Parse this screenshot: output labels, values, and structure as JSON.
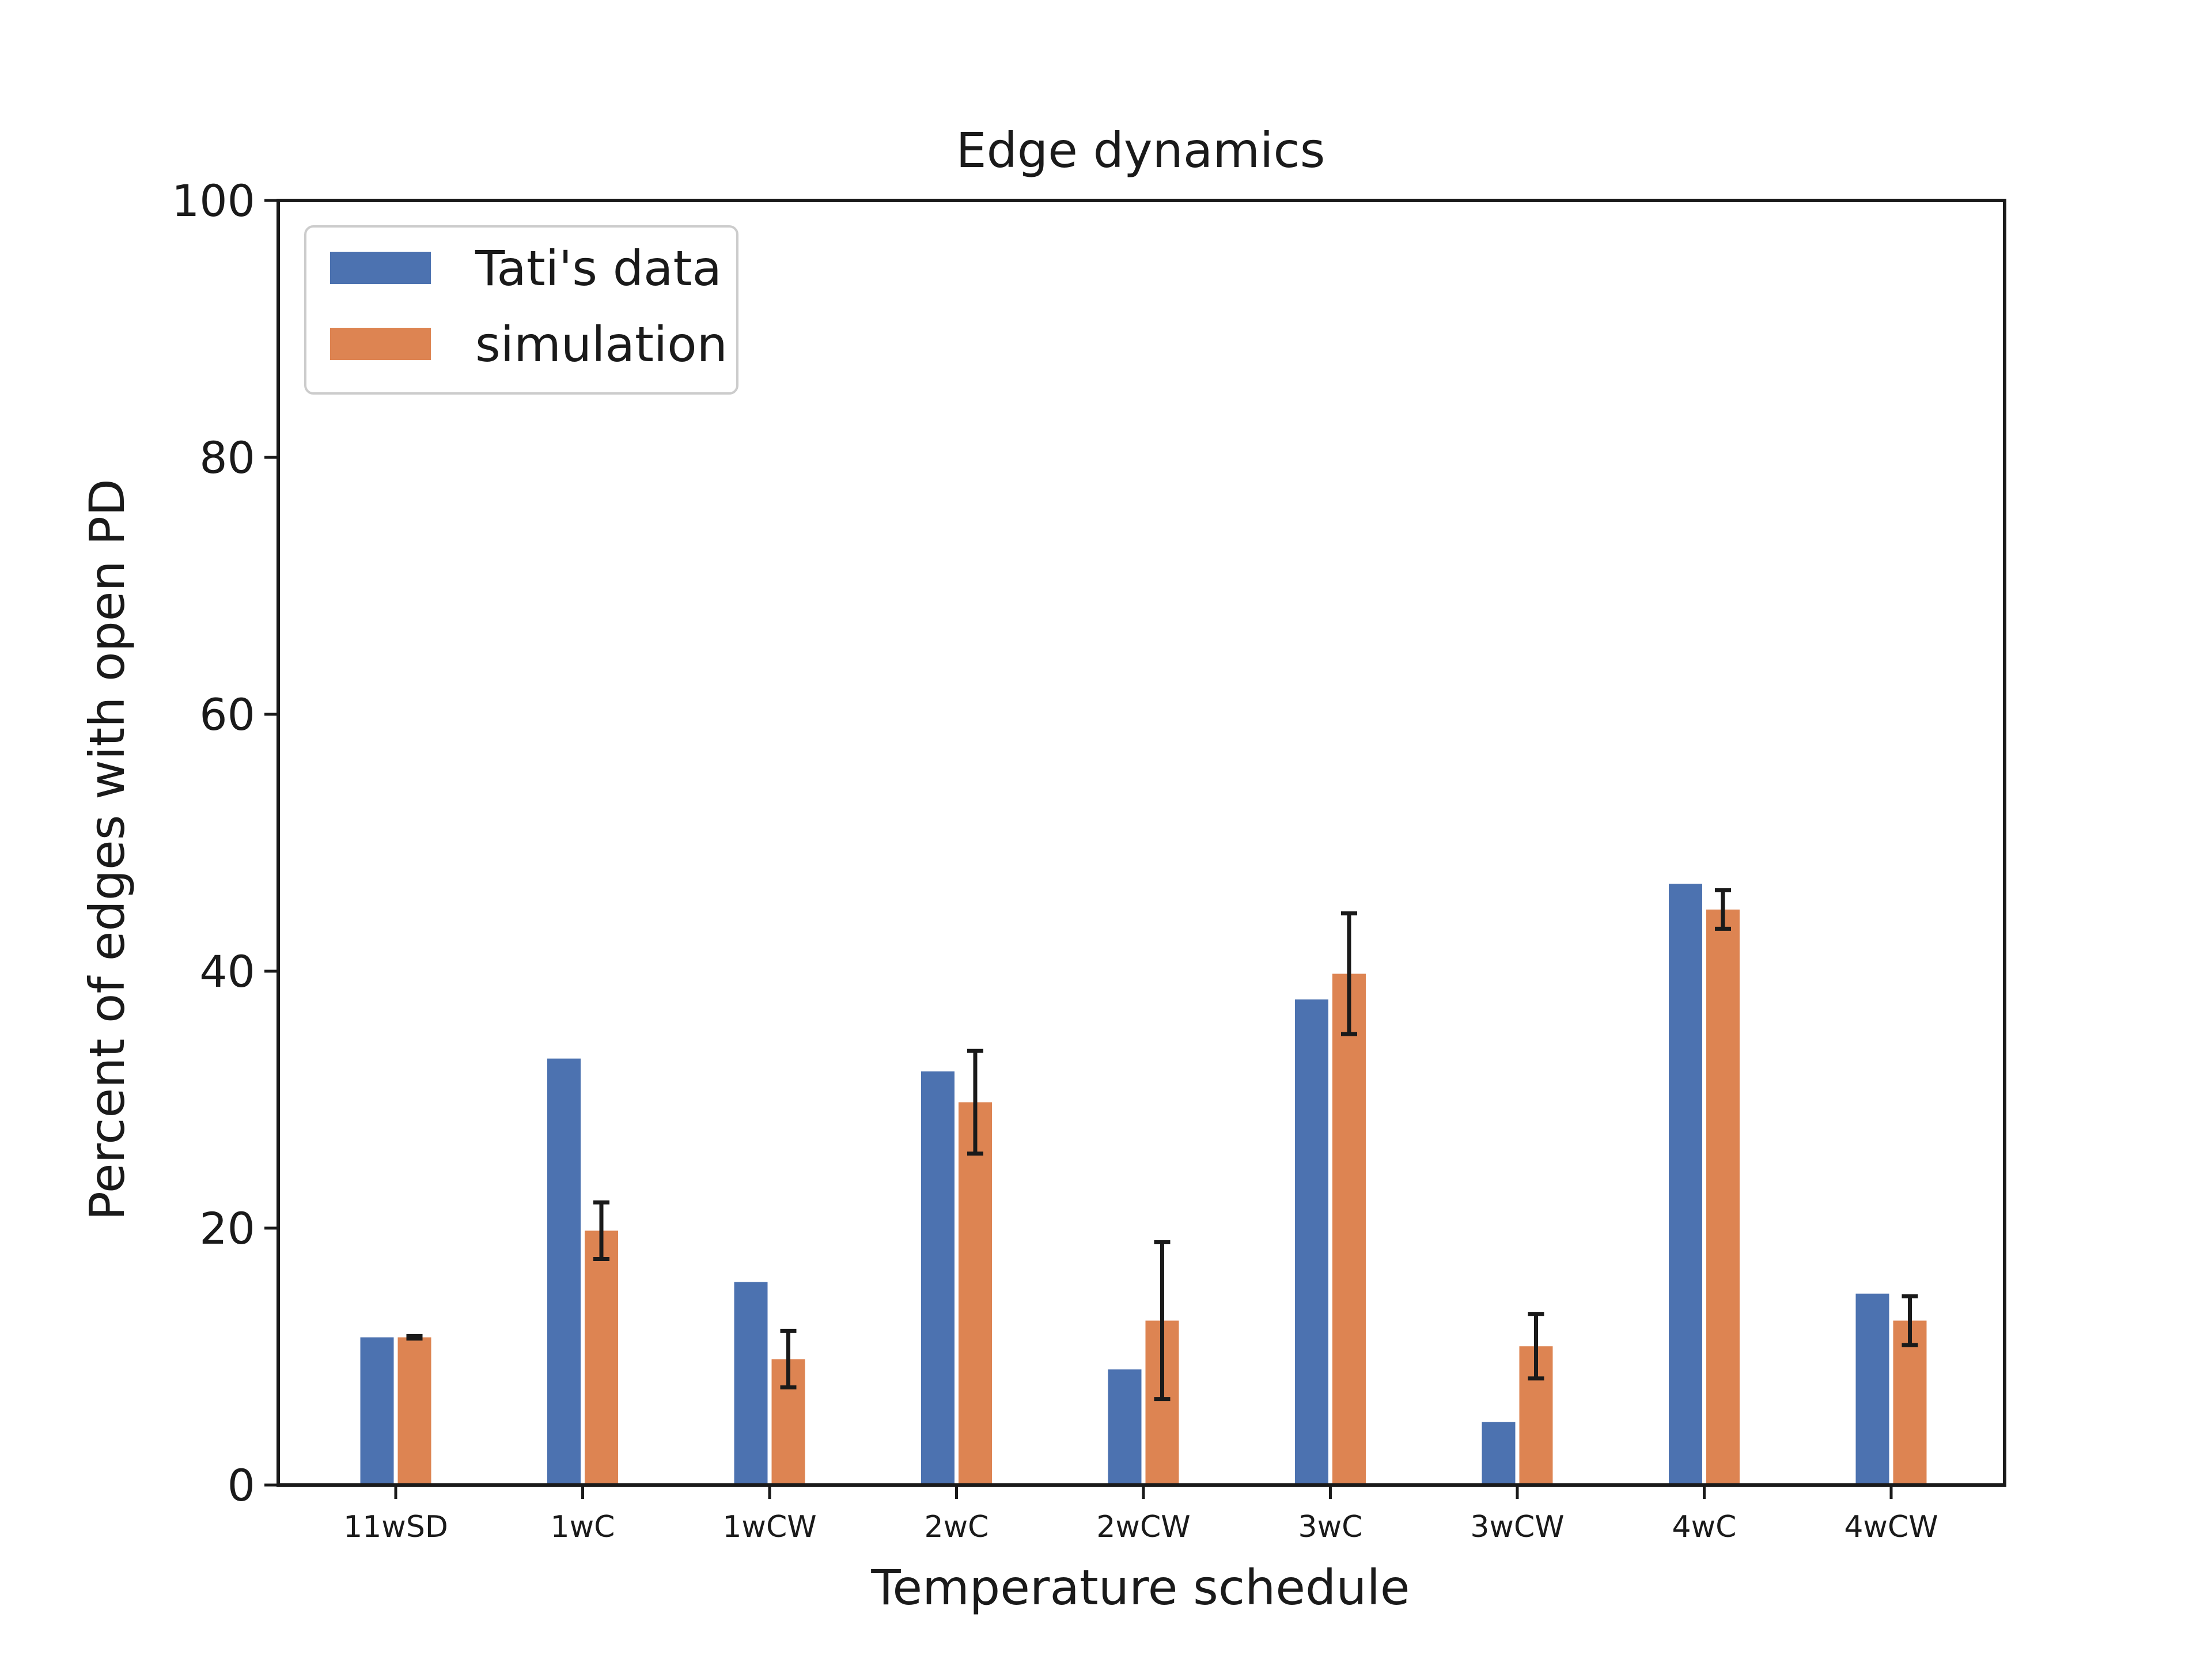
{
  "chart_data": {
    "type": "bar",
    "title": "Edge dynamics",
    "xlabel": "Temperature schedule",
    "ylabel": "Percent of edges with open PD",
    "ylim": [
      0,
      100
    ],
    "yticks": [
      0,
      20,
      40,
      60,
      80,
      100
    ],
    "categories": [
      "11wSD",
      "1wC",
      "1wCW",
      "2wC",
      "2wCW",
      "3wC",
      "3wCW",
      "4wC",
      "4wCW"
    ],
    "grid": false,
    "legend_position": "top-left",
    "series": [
      {
        "name": "Tati's data",
        "color": "#4c72b0",
        "values": [
          11.5,
          33.2,
          15.8,
          32.2,
          9.0,
          37.8,
          4.9,
          46.8,
          14.9
        ]
      },
      {
        "name": "simulation",
        "color": "#dd8452",
        "values": [
          11.5,
          19.8,
          9.8,
          29.8,
          12.8,
          39.8,
          10.8,
          44.8,
          12.8
        ],
        "error": [
          0.1,
          2.2,
          2.2,
          4.0,
          6.1,
          4.7,
          2.5,
          1.5,
          1.9
        ]
      }
    ]
  }
}
